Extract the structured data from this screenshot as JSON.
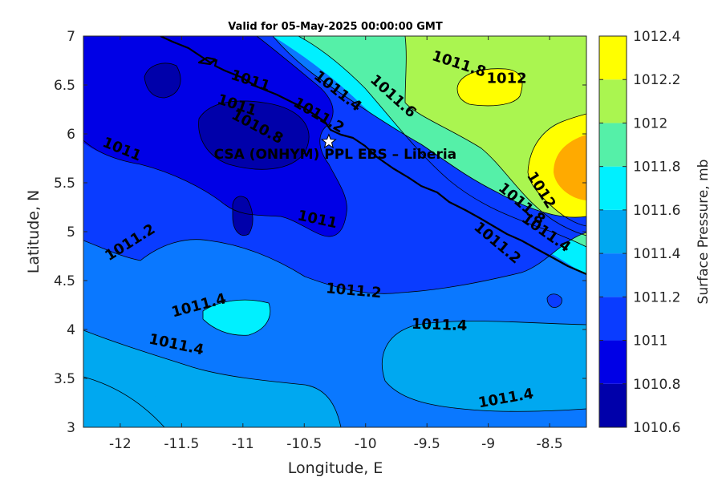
{
  "chart_data": {
    "type": "contour",
    "title": "Valid for 05-May-2025 00:00:00 GMT",
    "xlabel": "Longitude, E",
    "ylabel": "Latitude, N",
    "xlim": [
      -12.3,
      -8.2
    ],
    "ylim": [
      3,
      7
    ],
    "xticks": [
      "-12",
      "-11.5",
      "-11",
      "-10.5",
      "-10",
      "-9.5",
      "-9",
      "-8.5"
    ],
    "xtick_values": [
      -12,
      -11.5,
      -11,
      -10.5,
      -10,
      -9.5,
      -9,
      -8.5
    ],
    "yticks": [
      "3",
      "3.5",
      "4",
      "4.5",
      "5",
      "5.5",
      "6",
      "6.5",
      "7"
    ],
    "ytick_values": [
      3,
      3.5,
      4,
      4.5,
      5,
      5.5,
      6,
      6.5,
      7
    ],
    "colorbar": {
      "label": "Surface Pressure, mb",
      "ticks": [
        "1010.6",
        "1010.8",
        "1011",
        "1011.2",
        "1011.4",
        "1011.6",
        "1011.8",
        "1012",
        "1012.2",
        "1012.4"
      ],
      "levels": [
        1010.6,
        1010.8,
        1011,
        1011.2,
        1011.4,
        1011.6,
        1011.8,
        1012,
        1012.2,
        1012.4
      ],
      "colors": [
        "#0000aa",
        "#0000e6",
        "#0a3cff",
        "#0a78ff",
        "#00a8f0",
        "#00f0ff",
        "#55f0a8",
        "#aaf550",
        "#ffff00",
        "#ffaa00",
        "#ff5a00"
      ]
    },
    "contour_labels": [
      {
        "text": "1011",
        "lon": -10.95,
        "lat": 6.5
      },
      {
        "text": "1011.4",
        "lon": -10.25,
        "lat": 6.4
      },
      {
        "text": "1011.6",
        "lon": -9.8,
        "lat": 6.35
      },
      {
        "text": "1011.8",
        "lon": -9.25,
        "lat": 6.67
      },
      {
        "text": "1012",
        "lon": -8.85,
        "lat": 6.52
      },
      {
        "text": "1011.2",
        "lon": -10.4,
        "lat": 6.15
      },
      {
        "text": "1011",
        "lon": -11.06,
        "lat": 6.25
      },
      {
        "text": "1010.8",
        "lon": -10.9,
        "lat": 6.03
      },
      {
        "text": "1011",
        "lon": -12.0,
        "lat": 5.8
      },
      {
        "text": "1011",
        "lon": -10.4,
        "lat": 5.08
      },
      {
        "text": "1012",
        "lon": -8.6,
        "lat": 5.4
      },
      {
        "text": "1011.8",
        "lon": -8.75,
        "lat": 5.25
      },
      {
        "text": "1011.4",
        "lon": -8.55,
        "lat": 4.95
      },
      {
        "text": "1011.2",
        "lon": -8.95,
        "lat": 4.85
      },
      {
        "text": "1011.2",
        "lon": -11.9,
        "lat": 4.85
      },
      {
        "text": "1011.4",
        "lon": -11.35,
        "lat": 4.2
      },
      {
        "text": "1011.2",
        "lon": -10.1,
        "lat": 4.35
      },
      {
        "text": "1011.4",
        "lon": -9.4,
        "lat": 4.0
      },
      {
        "text": "1011.4",
        "lon": -11.55,
        "lat": 3.8
      },
      {
        "text": "1011.4",
        "lon": -8.85,
        "lat": 3.25
      }
    ],
    "station": {
      "name": "CSA (ONHYM) PPL EBS  – Liberia",
      "lon": -10.3,
      "lat": 5.92
    }
  }
}
